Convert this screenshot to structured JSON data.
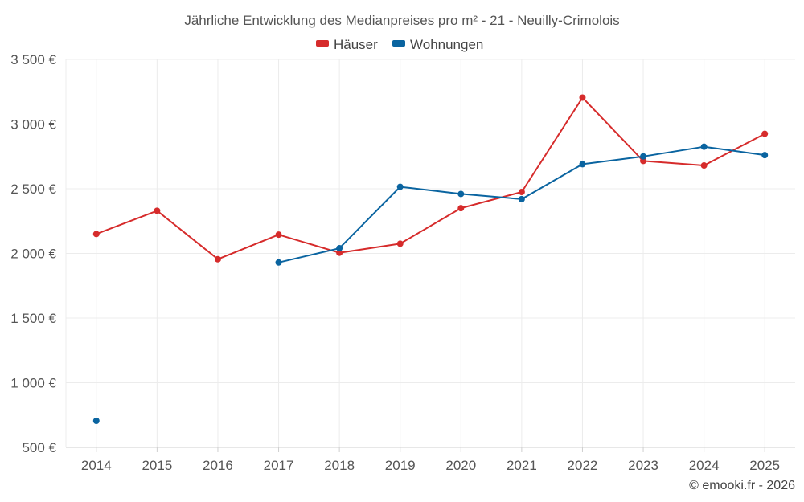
{
  "chart_data": {
    "type": "line",
    "title": "Jährliche Entwicklung des Medianpreises pro m² - 21 - Neuilly-Crimolois",
    "categories": [
      "2014",
      "2015",
      "2016",
      "2017",
      "2018",
      "2019",
      "2020",
      "2021",
      "2022",
      "2023",
      "2024",
      "2025"
    ],
    "series": [
      {
        "name": "Häuser",
        "color": "#d62b2b",
        "values": [
          2150,
          2330,
          1955,
          2145,
          2005,
          2075,
          2350,
          2475,
          3205,
          2715,
          2680,
          2925
        ]
      },
      {
        "name": "Wohnungen",
        "color": "#0a64a0",
        "values": [
          705,
          null,
          null,
          1930,
          2040,
          2515,
          2460,
          2420,
          2690,
          2750,
          2825,
          2760
        ]
      }
    ],
    "ylim": [
      500,
      3500
    ],
    "yticks": [
      500,
      1000,
      1500,
      2000,
      2500,
      3000,
      3500
    ],
    "ytick_labels": [
      "500 €",
      "1 000 €",
      "1 500 €",
      "2 000 €",
      "2 500 €",
      "3 000 €",
      "3 500 €"
    ],
    "xlabel": "",
    "ylabel": "",
    "grid": true,
    "legend_position": "top-center"
  },
  "credit": "© emooki.fr - 2026"
}
